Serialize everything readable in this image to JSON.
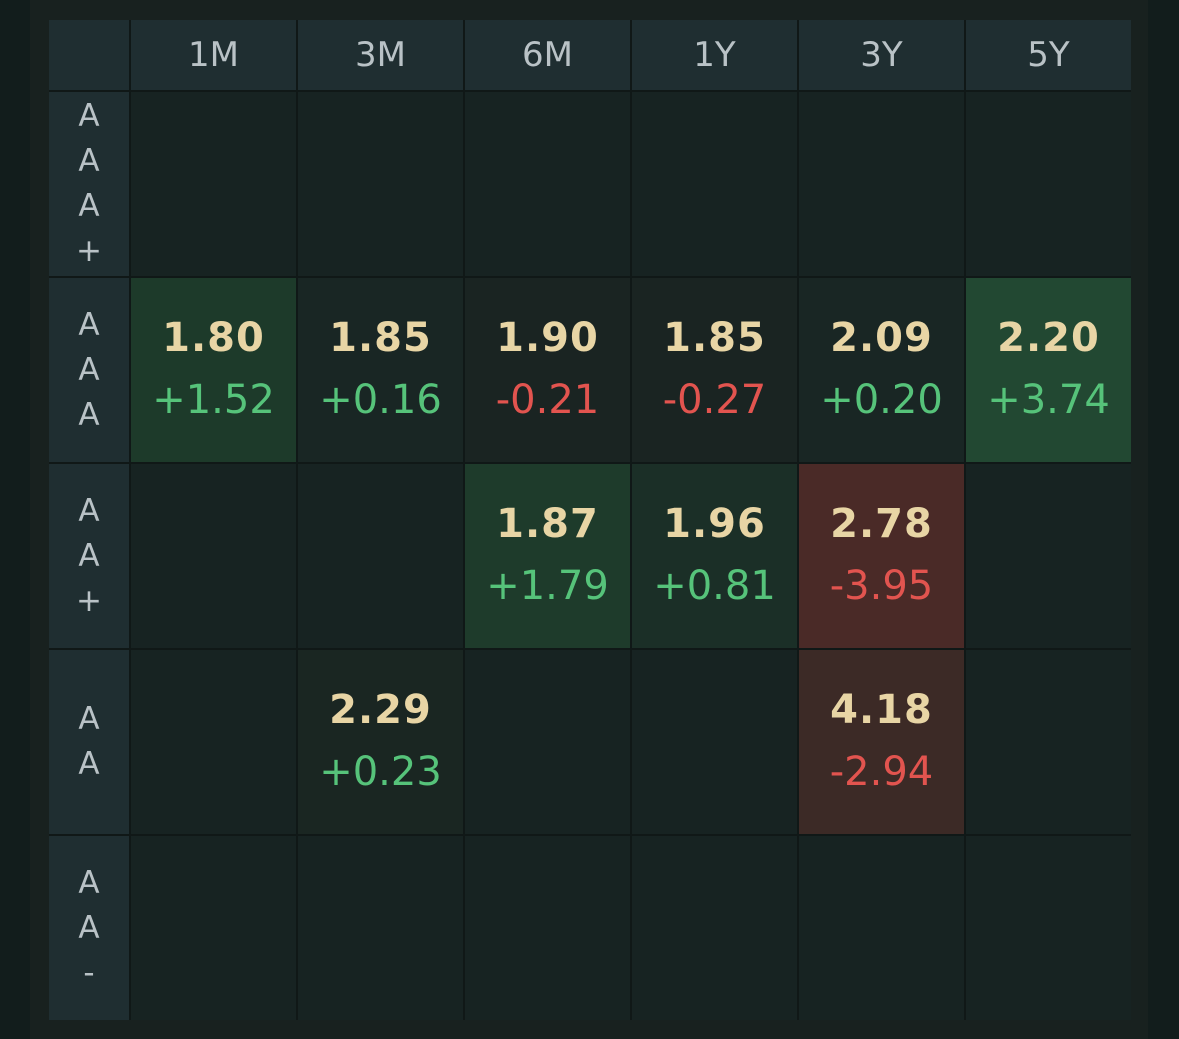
{
  "chart_data": {
    "type": "heatmap",
    "columns": [
      "1M",
      "3M",
      "6M",
      "1Y",
      "3Y",
      "5Y"
    ],
    "rows": [
      "AAA+",
      "AAA",
      "AA+",
      "AA",
      "AA-"
    ],
    "cells": [
      [
        null,
        null,
        null,
        null,
        null,
        null
      ],
      [
        {
          "value": "1.80",
          "change": "+1.52",
          "bg": "#1d3a2a"
        },
        {
          "value": "1.85",
          "change": "+0.16",
          "bg": "#192624"
        },
        {
          "value": "1.90",
          "change": "-0.21",
          "bg": "#1a2422"
        },
        {
          "value": "1.85",
          "change": "-0.27",
          "bg": "#1a2422"
        },
        {
          "value": "2.09",
          "change": "+0.20",
          "bg": "#192624"
        },
        {
          "value": "2.20",
          "change": "+3.74",
          "bg": "#224832"
        }
      ],
      [
        null,
        null,
        {
          "value": "1.87",
          "change": "+1.79",
          "bg": "#1e3b2b"
        },
        {
          "value": "1.96",
          "change": "+0.81",
          "bg": "#1b2f27"
        },
        {
          "value": "2.78",
          "change": "-3.95",
          "bg": "#4a2a27"
        },
        null
      ],
      [
        null,
        {
          "value": "2.29",
          "change": "+0.23",
          "bg": "#1a2622"
        },
        null,
        null,
        {
          "value": "4.18",
          "change": "-2.94",
          "bg": "#3c2a26"
        },
        null
      ],
      [
        null,
        null,
        null,
        null,
        null,
        null
      ]
    ]
  },
  "colors": {
    "empty_cell": "#172322",
    "positive": "#56c37a",
    "negative": "#e2544f",
    "value_text": "#e8d5a5"
  }
}
